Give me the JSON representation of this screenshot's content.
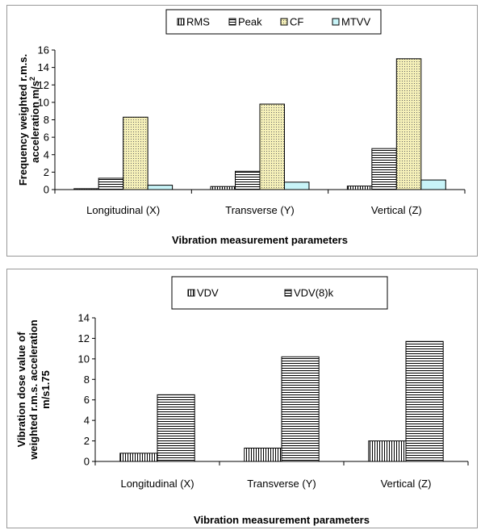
{
  "chart_data": [
    {
      "type": "bar",
      "title": "",
      "xlabel": "Vibration measurement parameters",
      "ylabel_line1": "Frequency weighted r.m.s.",
      "ylabel_line2": "acceleration m/s",
      "ylabel_sup": "2",
      "categories": [
        "Longitudinal (X)",
        "Transverse (Y)",
        "Vertical (Z)"
      ],
      "ylim": [
        0,
        16
      ],
      "yticks": [
        0,
        2,
        4,
        6,
        8,
        10,
        12,
        14,
        16
      ],
      "legend_position": "top-center",
      "grid": false,
      "series": [
        {
          "name": "RMS",
          "values": [
            0.1,
            0.35,
            0.4
          ],
          "pattern": "vlines",
          "color": "#ffffff"
        },
        {
          "name": "Peak",
          "values": [
            1.3,
            2.1,
            4.7
          ],
          "pattern": "hlines",
          "color": "#ffffff"
        },
        {
          "name": "CF",
          "values": [
            8.3,
            9.8,
            15.0
          ],
          "pattern": "dots",
          "color": "#f5f0b8"
        },
        {
          "name": "MTVV",
          "values": [
            0.5,
            0.85,
            1.1
          ],
          "pattern": "solid",
          "color": "#c8f4f8"
        }
      ]
    },
    {
      "type": "bar",
      "title": "",
      "xlabel": "Vibration measurement parameters",
      "ylabel_line1": "Vibration dose value of",
      "ylabel_line2": "weighted r.m.s. acceleration",
      "ylabel_line3": "m/s1.75",
      "categories": [
        "Longitudinal (X)",
        "Transverse (Y)",
        "Vertical (Z)"
      ],
      "ylim": [
        0,
        14
      ],
      "yticks": [
        0,
        2,
        4,
        6,
        8,
        10,
        12,
        14
      ],
      "legend_position": "top-center",
      "grid": false,
      "series": [
        {
          "name": "VDV",
          "values": [
            0.8,
            1.3,
            2.0
          ],
          "pattern": "vlines",
          "color": "#ffffff"
        },
        {
          "name": "VDV(8)k",
          "values": [
            6.5,
            10.2,
            11.7
          ],
          "pattern": "hlines",
          "color": "#ffffff"
        }
      ]
    }
  ]
}
